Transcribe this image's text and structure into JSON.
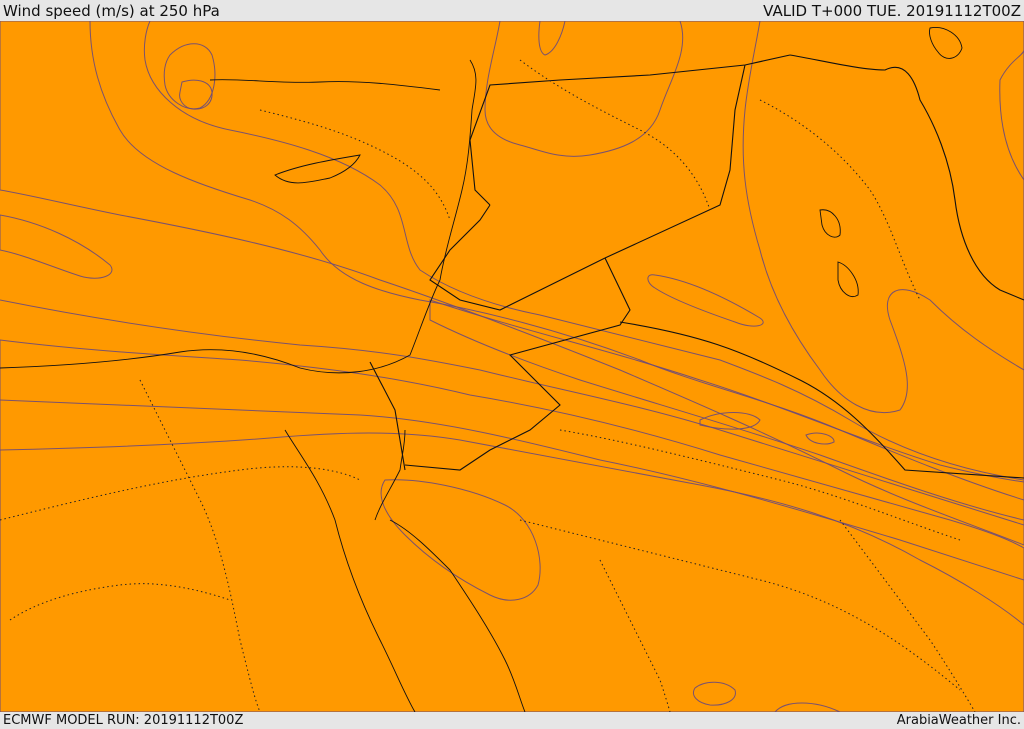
{
  "header": {
    "title": "Wind speed (m/s) at 250 hPa",
    "valid": "VALID T+000 TUE. 20191112T00Z"
  },
  "footer": {
    "model_run": "ECMWF MODEL RUN: 20191112T00Z",
    "credit": "ArabiaWeather Inc."
  },
  "palette": {
    "white": "#ffffff",
    "peach": "#ffdeaa",
    "yellow": "#ffff00",
    "gold": "#ffdd00",
    "amber": "#ffbb00",
    "orange": "#ff9900",
    "dark_orange": "#ff6600",
    "red_orange": "#ff3f00",
    "red": "#ff1a00"
  }
}
